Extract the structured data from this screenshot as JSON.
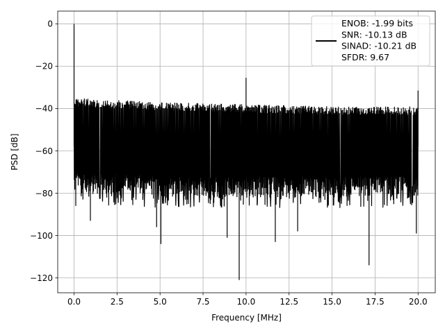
{
  "chart_data": {
    "type": "line",
    "title": "",
    "xlabel": "Frequency [MHz]",
    "ylabel": "PSD [dB]",
    "xlim": [
      -0.95,
      21.0
    ],
    "ylim": [
      -127,
      6
    ],
    "grid": true,
    "legend_position": "top-right",
    "xticks": [
      0.0,
      2.5,
      5.0,
      7.5,
      10.0,
      12.5,
      15.0,
      17.5,
      20.0
    ],
    "xtick_labels": [
      "0.0",
      "2.5",
      "5.0",
      "7.5",
      "10.0",
      "12.5",
      "15.0",
      "17.5",
      "20.0"
    ],
    "yticks": [
      0,
      -20,
      -40,
      -60,
      -80,
      -100,
      -120
    ],
    "ytick_labels": [
      "0",
      "−20",
      "−40",
      "−60",
      "−80",
      "−100",
      "−120"
    ],
    "series": [
      {
        "name": "ENOB: -1.99 bits\nSNR: -10.13 dB\nSINAD: -10.21 dB\nSFDR: 9.67",
        "color": "#000000",
        "x_range": [
          0,
          20
        ],
        "noise_upper_db": [
          -35,
          -37,
          -38,
          -39,
          -39
        ],
        "noise_lower_db": [
          -80,
          -82,
          -82,
          -82,
          -82
        ],
        "peaks": [
          {
            "x": 0.0,
            "y": 0
          },
          {
            "x": 10.0,
            "y": -25.5
          },
          {
            "x": 20.0,
            "y": -31.5
          }
        ],
        "dips": [
          {
            "x": 0.1,
            "y": -86
          },
          {
            "x": 0.95,
            "y": -93
          },
          {
            "x": 4.8,
            "y": -96
          },
          {
            "x": 5.05,
            "y": -104
          },
          {
            "x": 8.9,
            "y": -101
          },
          {
            "x": 9.6,
            "y": -121
          },
          {
            "x": 11.7,
            "y": -103
          },
          {
            "x": 13.0,
            "y": -98
          },
          {
            "x": 17.15,
            "y": -114
          },
          {
            "x": 19.9,
            "y": -99
          }
        ]
      }
    ],
    "legend_lines": [
      "ENOB: -1.99 bits",
      "SNR: -10.13 dB",
      "SINAD: -10.21 dB",
      "SFDR: 9.67"
    ],
    "colors": {
      "line": "#000000",
      "grid": "#b0b0b0",
      "axes": "#000000",
      "legend_border": "#cccccc"
    }
  }
}
